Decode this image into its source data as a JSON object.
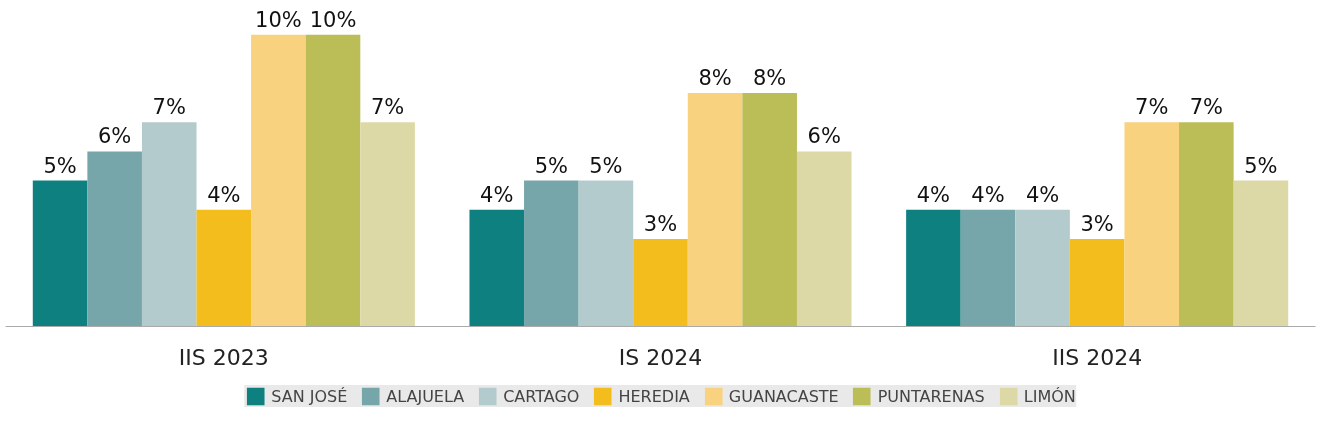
{
  "chart_data": {
    "type": "bar",
    "categories": [
      "IIS 2023",
      "IS 2024",
      "IIS 2024"
    ],
    "series": [
      {
        "name": "SAN JOSÉ",
        "color": "#0f8080",
        "values": [
          5,
          4,
          4
        ],
        "value_labels": [
          "5%",
          "4%",
          "4%"
        ]
      },
      {
        "name": "ALAJUELA",
        "color": "#76a6aa",
        "values": [
          6,
          5,
          4
        ],
        "value_labels": [
          "6%",
          "5%",
          "4%"
        ]
      },
      {
        "name": "CARTAGO",
        "color": "#b4cbcd",
        "values": [
          7,
          5,
          4
        ],
        "value_labels": [
          "7%",
          "5%",
          "4%"
        ]
      },
      {
        "name": "HEREDIA",
        "color": "#f3bd1e",
        "values": [
          4,
          3,
          3
        ],
        "value_labels": [
          "4%",
          "3%",
          "3%"
        ]
      },
      {
        "name": "GUANACASTE",
        "color": "#f8d27e",
        "values": [
          10,
          8,
          7
        ],
        "value_labels": [
          "10%",
          "8%",
          "7%"
        ]
      },
      {
        "name": "PUNTARENAS",
        "color": "#bbbd56",
        "values": [
          10,
          8,
          7
        ],
        "value_labels": [
          "10%",
          "8%",
          "7%"
        ]
      },
      {
        "name": "LIMÓN",
        "color": "#dcd9a6",
        "values": [
          7,
          6,
          5
        ],
        "value_labels": [
          "7%",
          "6%",
          "5%"
        ]
      }
    ],
    "legend": "bottom"
  }
}
